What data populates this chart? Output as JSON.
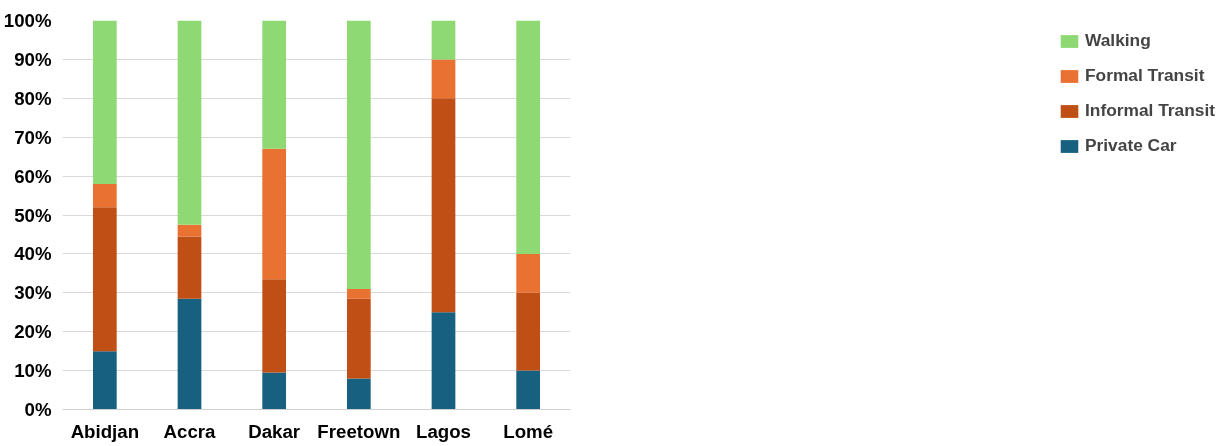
{
  "chart_data": {
    "type": "bar",
    "stacked": true,
    "categories": [
      "Abidjan",
      "Accra",
      "Dakar",
      "Freetown",
      "Lagos",
      "Lomé"
    ],
    "series": [
      {
        "name": "Private Car",
        "color": "#17607f",
        "values": [
          15,
          28.5,
          9.5,
          8,
          25,
          10
        ]
      },
      {
        "name": "Informal Transit",
        "color": "#c04f15",
        "values": [
          37,
          16,
          24,
          20.5,
          55,
          20
        ]
      },
      {
        "name": "Formal Transit",
        "color": "#e97132",
        "values": [
          6,
          3,
          33.5,
          2.5,
          10,
          10
        ]
      },
      {
        "name": "Walking",
        "color": "#8ed973",
        "values": [
          42,
          52.5,
          33,
          69,
          10,
          60
        ]
      }
    ],
    "ylim": [
      0,
      100
    ],
    "yticks": [
      {
        "value": 0,
        "label": "0%"
      },
      {
        "value": 10,
        "label": "10%"
      },
      {
        "value": 20,
        "label": "20%"
      },
      {
        "value": 30,
        "label": "30%"
      },
      {
        "value": 40,
        "label": "40%"
      },
      {
        "value": 50,
        "label": "50%"
      },
      {
        "value": 60,
        "label": "60%"
      },
      {
        "value": 70,
        "label": "70%"
      },
      {
        "value": 80,
        "label": "80%"
      },
      {
        "value": 90,
        "label": "90%"
      },
      {
        "value": 100,
        "label": "100%"
      }
    ],
    "grid": "y",
    "legend": "right"
  }
}
